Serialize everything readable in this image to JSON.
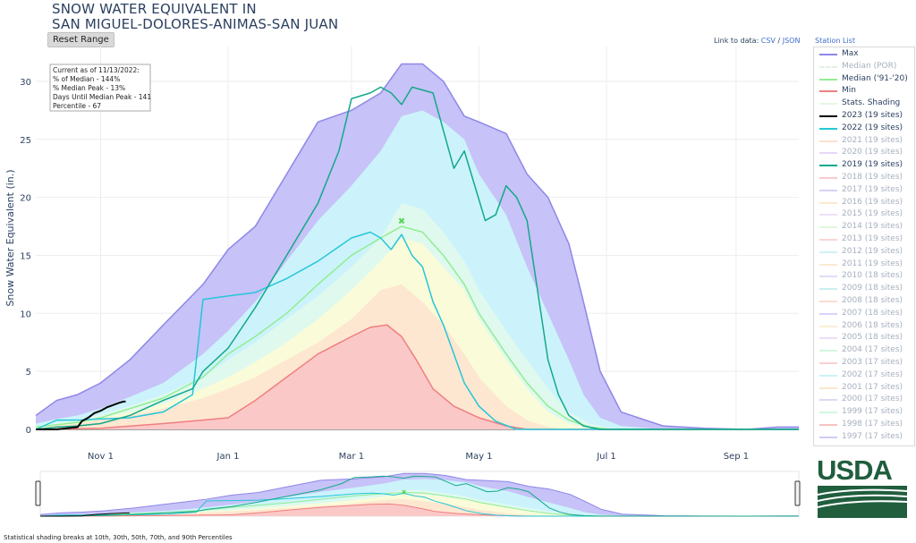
{
  "title_lines": [
    "SNOW WATER EQUIVALENT IN",
    "SAN MIGUEL-DOLORES-ANIMAS-SAN JUAN"
  ],
  "reset_button": "Reset Range",
  "link": {
    "prefix": "Link to data:",
    "csv": "CSV",
    "sep": "/",
    "json": "JSON"
  },
  "station_list": "Station List",
  "info_box": [
    "Current as of 11/13/2022:",
    "% of Median - 144%",
    "% Median Peak - 13%",
    "Days Until Median Peak - 141",
    "Percentile - 67"
  ],
  "footnote": "Statistical shading breaks at 10th, 30th, 50th, 70th, and 90th Percentiles",
  "logo_text": "USDA",
  "legend": [
    {
      "label": "Max",
      "color": "#8f87e8",
      "active": true
    },
    {
      "label": "Median (POR)",
      "color": "#cfe6cf",
      "active": false,
      "dash": true
    },
    {
      "label": "Median ('91-'20)",
      "color": "#90ee90",
      "active": true
    },
    {
      "label": "Min",
      "color": "#f07f7f",
      "active": true
    },
    {
      "label": "Stats. Shading",
      "color": "#e6f7e6",
      "active": true
    },
    {
      "label": "2023 (19 sites)",
      "color": "#000000",
      "active": true
    },
    {
      "label": "2022 (19 sites)",
      "color": "#25c6d8",
      "active": true
    },
    {
      "label": "2021 (19 sites)",
      "color": "#f7c7a6",
      "active": false
    },
    {
      "label": "2020 (19 sites)",
      "color": "#d2b8f0",
      "active": false
    },
    {
      "label": "2019 (19 sites)",
      "color": "#14a88a",
      "active": true
    },
    {
      "label": "2018 (19 sites)",
      "color": "#f5a0a0",
      "active": false
    },
    {
      "label": "2017 (19 sites)",
      "color": "#b0aef0",
      "active": false
    },
    {
      "label": "2016 (19 sites)",
      "color": "#f7d8a0",
      "active": false
    },
    {
      "label": "2015 (19 sites)",
      "color": "#e0c8f0",
      "active": false
    },
    {
      "label": "2014 (19 sites)",
      "color": "#c8f0c0",
      "active": false
    },
    {
      "label": "2013 (19 sites)",
      "color": "#f7b0b0",
      "active": false
    },
    {
      "label": "2012 (19 sites)",
      "color": "#a8e8f0",
      "active": false
    },
    {
      "label": "2011 (19 sites)",
      "color": "#f7d8b0",
      "active": false
    },
    {
      "label": "2010 (18 sites)",
      "color": "#c8c0f0",
      "active": false
    },
    {
      "label": "2009 (18 sites)",
      "color": "#a0e0e8",
      "active": false
    },
    {
      "label": "2008 (18 sites)",
      "color": "#f7c0b0",
      "active": false
    },
    {
      "label": "2007 (18 sites)",
      "color": "#b8b0f0",
      "active": false
    },
    {
      "label": "2006 (18 sites)",
      "color": "#f7e0b0",
      "active": false
    },
    {
      "label": "2005 (18 sites)",
      "color": "#e0c0f0",
      "active": false
    },
    {
      "label": "2004 (17 sites)",
      "color": "#b0f0c0",
      "active": false
    },
    {
      "label": "2003 (17 sites)",
      "color": "#f7a8a8",
      "active": false
    },
    {
      "label": "2002 (17 sites)",
      "color": "#a0e8f0",
      "active": false
    },
    {
      "label": "2001 (17 sites)",
      "color": "#f7d0a0",
      "active": false
    },
    {
      "label": "2000 (17 sites)",
      "color": "#c0b8f0",
      "active": false
    },
    {
      "label": "1999 (17 sites)",
      "color": "#a8f0c8",
      "active": false
    },
    {
      "label": "1998 (17 sites)",
      "color": "#f09090",
      "active": false
    },
    {
      "label": "1997 (17 sites)",
      "color": "#a8a0f0",
      "active": false
    }
  ],
  "chart_data": {
    "type": "line",
    "title": "SNOW WATER EQUIVALENT IN SAN MIGUEL-DOLORES-ANIMAS-SAN JUAN",
    "xlabel": "",
    "ylabel": "Snow Water Equivalent (in.)",
    "x_ticks": [
      "Nov 1",
      "Jan 1",
      "Mar 1",
      "May 1",
      "Jul 1",
      "Sep 1"
    ],
    "x_tick_days": [
      31,
      92,
      151,
      212,
      273,
      335
    ],
    "y_ticks": [
      0,
      5,
      10,
      15,
      20,
      25,
      30
    ],
    "ylim": [
      0,
      33
    ],
    "xlim_days": [
      0,
      365
    ],
    "grid": true,
    "x_unit": "days since Oct 1",
    "median_peak": {
      "day": 175,
      "value": 18
    },
    "bands": [
      {
        "name": "max",
        "color": "#c7c2f7",
        "x": [
          0,
          10,
          20,
          31,
          45,
          61,
          80,
          92,
          105,
          120,
          135,
          151,
          165,
          175,
          185,
          195,
          205,
          212,
          225,
          235,
          245,
          255,
          262,
          270,
          280,
          300,
          320,
          340,
          355,
          365
        ],
        "y": [
          1.2,
          2.5,
          3.0,
          4.0,
          6.0,
          9.0,
          12.5,
          15.5,
          17.5,
          22.0,
          26.5,
          27.5,
          29.0,
          31.5,
          31.5,
          30.0,
          27.0,
          26.5,
          25.5,
          22.0,
          20.0,
          16.0,
          11.0,
          5.0,
          1.5,
          0.3,
          0.1,
          0.0,
          0.2,
          0.2
        ]
      },
      {
        "name": "p90",
        "color": "#ccf3fb",
        "x": [
          0,
          10,
          20,
          31,
          45,
          61,
          80,
          92,
          105,
          120,
          135,
          151,
          165,
          175,
          185,
          195,
          205,
          212,
          225,
          235,
          245,
          255,
          262,
          270,
          280,
          300,
          320,
          340,
          365
        ],
        "y": [
          0.5,
          0.9,
          1.2,
          1.8,
          2.8,
          4.0,
          6.5,
          8.5,
          11.0,
          14.5,
          18.0,
          21.0,
          24.0,
          27.0,
          27.5,
          26.5,
          25.0,
          22.0,
          18.5,
          14.0,
          10.0,
          6.0,
          3.0,
          1.0,
          0.3,
          0.0,
          0.0,
          0.0,
          0.0
        ]
      },
      {
        "name": "p70",
        "color": "#dff9ef",
        "x": [
          0,
          10,
          20,
          31,
          45,
          61,
          80,
          92,
          105,
          120,
          135,
          151,
          165,
          175,
          185,
          195,
          205,
          212,
          225,
          235,
          245,
          255,
          265,
          275,
          300,
          365
        ],
        "y": [
          0.3,
          0.6,
          0.9,
          1.3,
          2.0,
          3.0,
          4.5,
          6.0,
          7.5,
          9.5,
          11.5,
          14.0,
          16.5,
          19.5,
          19.0,
          17.0,
          14.5,
          12.0,
          8.5,
          6.0,
          3.5,
          1.5,
          0.5,
          0.1,
          0.0,
          0.0
        ]
      },
      {
        "name": "p50",
        "color": "#fafbd9",
        "x": [
          0,
          10,
          20,
          31,
          45,
          61,
          80,
          92,
          105,
          120,
          135,
          151,
          165,
          175,
          185,
          195,
          205,
          212,
          225,
          235,
          245,
          255,
          265,
          300,
          365
        ],
        "y": [
          0.2,
          0.4,
          0.6,
          1.0,
          1.5,
          2.2,
          3.5,
          4.5,
          5.8,
          7.5,
          9.5,
          12.0,
          14.5,
          16.5,
          16.0,
          14.0,
          12.0,
          9.5,
          6.0,
          3.5,
          1.5,
          0.5,
          0.1,
          0.0,
          0.0
        ]
      },
      {
        "name": "p30",
        "color": "#fde7d1",
        "x": [
          0,
          10,
          20,
          31,
          45,
          61,
          80,
          92,
          105,
          120,
          135,
          151,
          165,
          175,
          185,
          195,
          205,
          212,
          225,
          235,
          245,
          255,
          300,
          365
        ],
        "y": [
          0.1,
          0.3,
          0.5,
          0.8,
          1.2,
          1.8,
          2.7,
          3.5,
          4.5,
          6.0,
          7.5,
          9.5,
          12.0,
          12.5,
          11.0,
          9.0,
          6.5,
          4.5,
          2.0,
          0.8,
          0.2,
          0.0,
          0.0,
          0.0
        ]
      },
      {
        "name": "min",
        "color": "#fbc8c8",
        "x": [
          0,
          31,
          61,
          80,
          92,
          105,
          120,
          135,
          151,
          160,
          168,
          175,
          182,
          190,
          200,
          212,
          225,
          235,
          245,
          365
        ],
        "y": [
          0.0,
          0.1,
          0.5,
          0.8,
          1.0,
          2.5,
          4.5,
          6.5,
          8.0,
          8.8,
          9.0,
          8.0,
          6.0,
          3.5,
          2.0,
          1.0,
          0.3,
          0.0,
          0.0,
          0.0
        ]
      }
    ],
    "series": [
      {
        "name": "Max",
        "color": "#8f87e8",
        "width": 1.5,
        "x": [
          0,
          10,
          20,
          31,
          45,
          61,
          80,
          92,
          105,
          120,
          135,
          151,
          165,
          175,
          185,
          195,
          205,
          212,
          225,
          235,
          245,
          255,
          262,
          270,
          280,
          300,
          320,
          340,
          355,
          365
        ],
        "y": [
          1.2,
          2.5,
          3.0,
          4.0,
          6.0,
          9.0,
          12.5,
          15.5,
          17.5,
          22.0,
          26.5,
          27.5,
          29.0,
          31.5,
          31.5,
          30.0,
          27.0,
          26.5,
          25.5,
          22.0,
          20.0,
          16.0,
          11.0,
          5.0,
          1.5,
          0.3,
          0.1,
          0.0,
          0.2,
          0.2
        ]
      },
      {
        "name": "Median ('91-'20)",
        "color": "#90ee90",
        "width": 1.5,
        "x": [
          0,
          10,
          20,
          31,
          45,
          61,
          80,
          92,
          105,
          120,
          135,
          151,
          165,
          175,
          185,
          195,
          205,
          212,
          225,
          235,
          245,
          255,
          265,
          275,
          300,
          365
        ],
        "y": [
          0.2,
          0.4,
          0.6,
          1.0,
          1.8,
          2.7,
          4.5,
          6.5,
          8.0,
          10.0,
          12.5,
          15.0,
          16.5,
          17.5,
          17.0,
          15.0,
          12.5,
          10.0,
          6.5,
          4.0,
          2.0,
          0.8,
          0.2,
          0.0,
          0.0,
          0.0
        ]
      },
      {
        "name": "Min",
        "color": "#f07f7f",
        "width": 1.5,
        "x": [
          0,
          31,
          61,
          80,
          92,
          105,
          120,
          135,
          151,
          160,
          168,
          175,
          182,
          190,
          200,
          212,
          225,
          235,
          245,
          365
        ],
        "y": [
          0.0,
          0.1,
          0.5,
          0.8,
          1.0,
          2.5,
          4.5,
          6.5,
          8.0,
          8.8,
          9.0,
          8.0,
          6.0,
          3.5,
          2.0,
          1.0,
          0.3,
          0.0,
          0.0,
          0.0
        ]
      },
      {
        "name": "2022 (19 sites)",
        "color": "#25c6d8",
        "width": 1.5,
        "x": [
          0,
          10,
          20,
          31,
          45,
          61,
          75,
          80,
          92,
          105,
          120,
          135,
          151,
          160,
          165,
          170,
          175,
          180,
          185,
          190,
          195,
          200,
          205,
          212,
          220,
          230,
          240,
          250,
          365
        ],
        "y": [
          0.0,
          0.8,
          0.8,
          0.9,
          1.0,
          1.5,
          3.0,
          11.2,
          11.5,
          11.8,
          13.0,
          14.5,
          16.5,
          17.0,
          16.5,
          15.5,
          16.8,
          15.0,
          14.0,
          11.0,
          9.0,
          6.5,
          4.0,
          2.0,
          0.7,
          0.0,
          0.0,
          0.0,
          0.0
        ]
      },
      {
        "name": "2019 (19 sites)",
        "color": "#14a88a",
        "width": 1.5,
        "x": [
          0,
          10,
          20,
          31,
          45,
          61,
          75,
          80,
          92,
          105,
          120,
          135,
          145,
          151,
          160,
          165,
          170,
          175,
          180,
          190,
          200,
          205,
          210,
          215,
          220,
          225,
          230,
          235,
          240,
          245,
          250,
          255,
          262,
          270,
          280,
          365
        ],
        "y": [
          0.0,
          0.2,
          0.3,
          0.5,
          1.2,
          2.5,
          3.5,
          5.0,
          7.0,
          10.5,
          15.0,
          19.5,
          24.0,
          28.5,
          29.0,
          29.5,
          29.0,
          28.0,
          29.5,
          29.0,
          22.5,
          24.0,
          21.0,
          18.0,
          18.5,
          21.0,
          20.0,
          18.0,
          12.0,
          6.0,
          3.0,
          1.2,
          0.3,
          0.0,
          0.0,
          0.0
        ]
      },
      {
        "name": "2023 (19 sites)",
        "color": "#000000",
        "width": 2,
        "x": [
          0,
          10,
          20,
          22,
          25,
          28,
          31,
          34,
          37,
          40,
          42,
          43
        ],
        "y": [
          0.0,
          0.0,
          0.2,
          0.7,
          1.0,
          1.4,
          1.6,
          1.9,
          2.1,
          2.3,
          2.4,
          2.4
        ]
      }
    ]
  }
}
